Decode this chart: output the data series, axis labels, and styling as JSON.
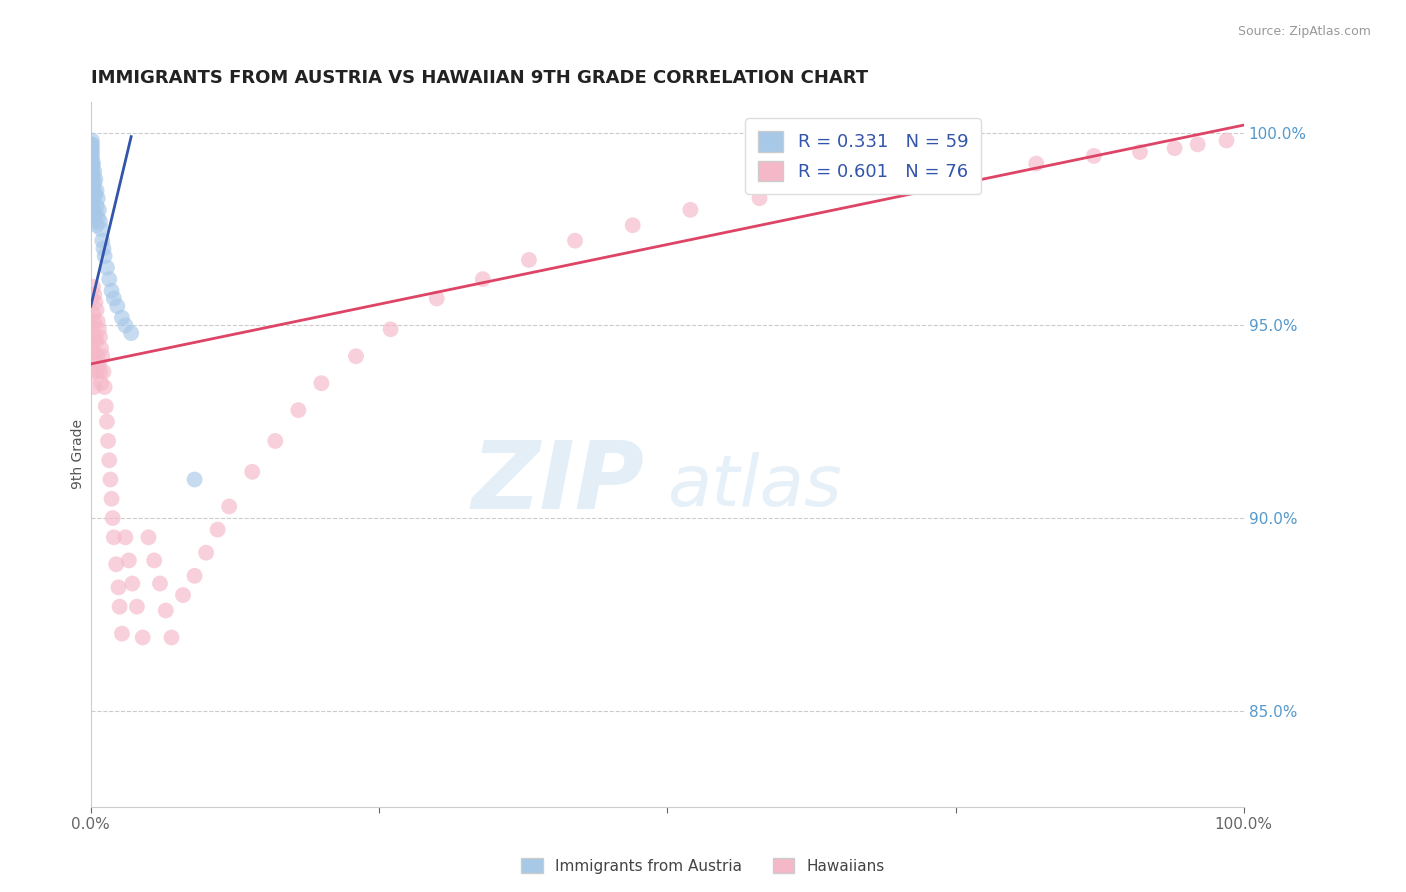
{
  "title": "IMMIGRANTS FROM AUSTRIA VS HAWAIIAN 9TH GRADE CORRELATION CHART",
  "source_text": "Source: ZipAtlas.com",
  "ylabel": "9th Grade",
  "xlim": [
    0,
    1.0
  ],
  "ylim": [
    0.825,
    1.008
  ],
  "yticks_right": [
    0.85,
    0.9,
    0.95,
    1.0
  ],
  "ytick_labels_right": [
    "85.0%",
    "90.0%",
    "95.0%",
    "100.0%"
  ],
  "blue_R": 0.331,
  "blue_N": 59,
  "pink_R": 0.601,
  "pink_N": 76,
  "blue_color": "#A8C8E8",
  "pink_color": "#F5B8C8",
  "blue_line_color": "#3355AA",
  "pink_line_color": "#DD4466",
  "legend_label_blue": "Immigrants from Austria",
  "legend_label_pink": "Hawaiians",
  "blue_scatter_x": [
    0.0,
    0.0,
    0.0,
    0.0,
    0.0,
    0.0,
    0.0,
    0.0,
    0.0,
    0.0,
    0.001,
    0.001,
    0.001,
    0.001,
    0.001,
    0.001,
    0.001,
    0.001,
    0.001,
    0.001,
    0.001,
    0.001,
    0.001,
    0.001,
    0.001,
    0.001,
    0.002,
    0.002,
    0.002,
    0.002,
    0.002,
    0.002,
    0.003,
    0.003,
    0.003,
    0.003,
    0.004,
    0.004,
    0.004,
    0.005,
    0.005,
    0.005,
    0.006,
    0.006,
    0.007,
    0.008,
    0.009,
    0.01,
    0.011,
    0.012,
    0.014,
    0.016,
    0.018,
    0.02,
    0.023,
    0.027,
    0.03,
    0.035,
    0.09
  ],
  "blue_scatter_y": [
    0.997,
    0.996,
    0.995,
    0.994,
    0.993,
    0.992,
    0.991,
    0.99,
    0.989,
    0.988,
    0.998,
    0.997,
    0.996,
    0.995,
    0.994,
    0.993,
    0.992,
    0.991,
    0.99,
    0.989,
    0.988,
    0.987,
    0.986,
    0.985,
    0.984,
    0.983,
    0.992,
    0.989,
    0.986,
    0.983,
    0.98,
    0.977,
    0.99,
    0.987,
    0.984,
    0.978,
    0.988,
    0.984,
    0.979,
    0.985,
    0.981,
    0.976,
    0.983,
    0.978,
    0.98,
    0.977,
    0.975,
    0.972,
    0.97,
    0.968,
    0.965,
    0.962,
    0.959,
    0.957,
    0.955,
    0.952,
    0.95,
    0.948,
    0.91
  ],
  "pink_scatter_x": [
    0.001,
    0.001,
    0.001,
    0.002,
    0.002,
    0.002,
    0.002,
    0.003,
    0.003,
    0.003,
    0.003,
    0.004,
    0.004,
    0.005,
    0.005,
    0.005,
    0.006,
    0.006,
    0.007,
    0.007,
    0.008,
    0.008,
    0.009,
    0.009,
    0.01,
    0.011,
    0.012,
    0.013,
    0.014,
    0.015,
    0.016,
    0.017,
    0.018,
    0.019,
    0.02,
    0.022,
    0.024,
    0.025,
    0.027,
    0.03,
    0.033,
    0.036,
    0.04,
    0.045,
    0.05,
    0.055,
    0.06,
    0.065,
    0.07,
    0.08,
    0.09,
    0.1,
    0.11,
    0.12,
    0.14,
    0.16,
    0.18,
    0.2,
    0.23,
    0.26,
    0.3,
    0.34,
    0.38,
    0.42,
    0.47,
    0.52,
    0.58,
    0.64,
    0.7,
    0.76,
    0.82,
    0.87,
    0.91,
    0.94,
    0.96,
    0.985
  ],
  "pink_scatter_y": [
    0.957,
    0.95,
    0.943,
    0.96,
    0.953,
    0.946,
    0.938,
    0.958,
    0.951,
    0.943,
    0.934,
    0.956,
    0.947,
    0.954,
    0.946,
    0.938,
    0.951,
    0.942,
    0.949,
    0.94,
    0.947,
    0.938,
    0.944,
    0.935,
    0.942,
    0.938,
    0.934,
    0.929,
    0.925,
    0.92,
    0.915,
    0.91,
    0.905,
    0.9,
    0.895,
    0.888,
    0.882,
    0.877,
    0.87,
    0.895,
    0.889,
    0.883,
    0.877,
    0.869,
    0.895,
    0.889,
    0.883,
    0.876,
    0.869,
    0.88,
    0.885,
    0.891,
    0.897,
    0.903,
    0.912,
    0.92,
    0.928,
    0.935,
    0.942,
    0.949,
    0.957,
    0.962,
    0.967,
    0.972,
    0.976,
    0.98,
    0.983,
    0.986,
    0.988,
    0.99,
    0.992,
    0.994,
    0.995,
    0.996,
    0.997,
    0.998
  ],
  "watermark_zip": "ZIP",
  "watermark_atlas": "atlas",
  "background_color": "#FFFFFF",
  "grid_color": "#CCCCCC"
}
